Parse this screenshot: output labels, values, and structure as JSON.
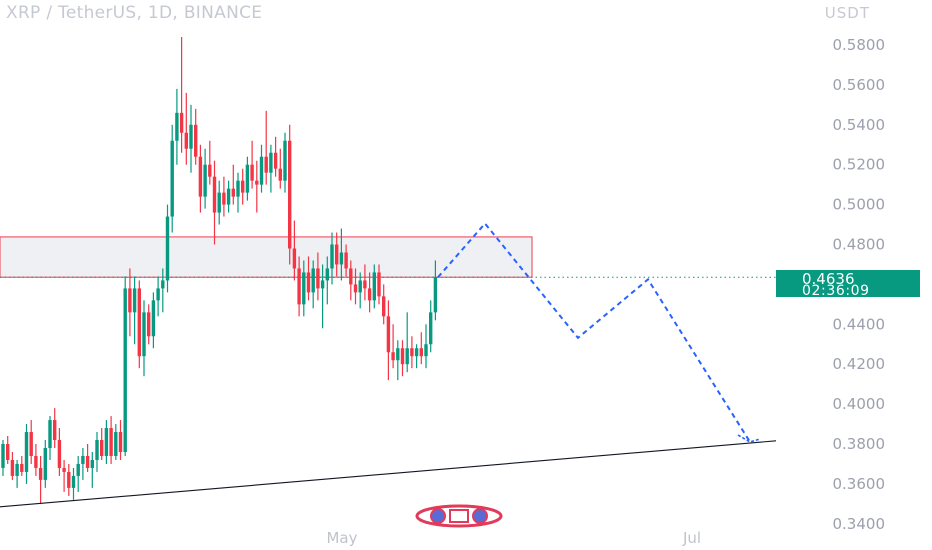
{
  "header": {
    "title": "XRP / TetherUS, 1D, BINANCE",
    "currency": "USDT"
  },
  "price_tag": {
    "price": "0.4636",
    "countdown": "02:36:09",
    "color": "#089981"
  },
  "colors": {
    "up": "#089981",
    "down": "#f23645",
    "projection": "#2962ff",
    "zone_border": "#f05a68",
    "trendline": "#131722"
  },
  "chart_data": {
    "type": "candlestick",
    "title": "XRP / TetherUS, 1D, BINANCE",
    "ylabel": "USDT",
    "ylim": [
      0.34,
      0.592
    ],
    "y_ticks": [
      "0.5800",
      "0.5600",
      "0.5400",
      "0.5200",
      "0.5000",
      "0.4800",
      "0.4400",
      "0.4200",
      "0.4000",
      "0.3800",
      "0.3600",
      "0.3400"
    ],
    "x_ticks": [
      "May",
      "Jul"
    ],
    "last_price": 0.4636,
    "candles": [
      [
        0.368,
        0.382,
        0.364,
        0.38
      ],
      [
        0.38,
        0.384,
        0.37,
        0.372
      ],
      [
        0.372,
        0.376,
        0.362,
        0.364
      ],
      [
        0.364,
        0.372,
        0.358,
        0.37
      ],
      [
        0.37,
        0.374,
        0.364,
        0.366
      ],
      [
        0.366,
        0.39,
        0.36,
        0.386
      ],
      [
        0.386,
        0.392,
        0.37,
        0.374
      ],
      [
        0.374,
        0.38,
        0.364,
        0.368
      ],
      [
        0.368,
        0.374,
        0.35,
        0.362
      ],
      [
        0.362,
        0.382,
        0.358,
        0.378
      ],
      [
        0.378,
        0.394,
        0.372,
        0.392
      ],
      [
        0.392,
        0.398,
        0.378,
        0.382
      ],
      [
        0.382,
        0.388,
        0.364,
        0.368
      ],
      [
        0.368,
        0.372,
        0.356,
        0.366
      ],
      [
        0.366,
        0.37,
        0.354,
        0.358
      ],
      [
        0.358,
        0.368,
        0.352,
        0.364
      ],
      [
        0.364,
        0.374,
        0.356,
        0.37
      ],
      [
        0.37,
        0.378,
        0.362,
        0.374
      ],
      [
        0.374,
        0.38,
        0.366,
        0.368
      ],
      [
        0.368,
        0.376,
        0.358,
        0.372
      ],
      [
        0.372,
        0.386,
        0.366,
        0.382
      ],
      [
        0.382,
        0.388,
        0.372,
        0.374
      ],
      [
        0.374,
        0.392,
        0.37,
        0.388
      ],
      [
        0.388,
        0.394,
        0.37,
        0.374
      ],
      [
        0.374,
        0.39,
        0.372,
        0.386
      ],
      [
        0.386,
        0.392,
        0.372,
        0.376
      ],
      [
        0.376,
        0.464,
        0.374,
        0.458
      ],
      [
        0.458,
        0.468,
        0.434,
        0.446
      ],
      [
        0.446,
        0.464,
        0.43,
        0.458
      ],
      [
        0.458,
        0.462,
        0.418,
        0.424
      ],
      [
        0.424,
        0.452,
        0.414,
        0.446
      ],
      [
        0.446,
        0.45,
        0.43,
        0.434
      ],
      [
        0.434,
        0.456,
        0.428,
        0.452
      ],
      [
        0.452,
        0.464,
        0.444,
        0.458
      ],
      [
        0.458,
        0.468,
        0.446,
        0.462
      ],
      [
        0.462,
        0.5,
        0.456,
        0.494
      ],
      [
        0.494,
        0.54,
        0.486,
        0.532
      ],
      [
        0.532,
        0.558,
        0.52,
        0.546
      ],
      [
        0.546,
        0.584,
        0.526,
        0.536
      ],
      [
        0.536,
        0.556,
        0.52,
        0.528
      ],
      [
        0.528,
        0.55,
        0.516,
        0.54
      ],
      [
        0.54,
        0.548,
        0.52,
        0.524
      ],
      [
        0.524,
        0.53,
        0.496,
        0.504
      ],
      [
        0.504,
        0.528,
        0.498,
        0.52
      ],
      [
        0.52,
        0.532,
        0.51,
        0.514
      ],
      [
        0.514,
        0.522,
        0.48,
        0.496
      ],
      [
        0.496,
        0.512,
        0.49,
        0.506
      ],
      [
        0.506,
        0.514,
        0.494,
        0.5
      ],
      [
        0.5,
        0.512,
        0.496,
        0.508
      ],
      [
        0.508,
        0.52,
        0.5,
        0.504
      ],
      [
        0.504,
        0.516,
        0.496,
        0.512
      ],
      [
        0.512,
        0.518,
        0.5,
        0.506
      ],
      [
        0.506,
        0.524,
        0.502,
        0.52
      ],
      [
        0.52,
        0.532,
        0.508,
        0.512
      ],
      [
        0.512,
        0.522,
        0.496,
        0.51
      ],
      [
        0.51,
        0.53,
        0.506,
        0.524
      ],
      [
        0.524,
        0.547,
        0.51,
        0.516
      ],
      [
        0.516,
        0.53,
        0.506,
        0.526
      ],
      [
        0.526,
        0.534,
        0.514,
        0.518
      ],
      [
        0.518,
        0.528,
        0.508,
        0.512
      ],
      [
        0.512,
        0.536,
        0.506,
        0.532
      ],
      [
        0.532,
        0.54,
        0.47,
        0.478
      ],
      [
        0.478,
        0.492,
        0.462,
        0.468
      ],
      [
        0.468,
        0.474,
        0.444,
        0.45
      ],
      [
        0.45,
        0.472,
        0.444,
        0.466
      ],
      [
        0.466,
        0.474,
        0.452,
        0.456
      ],
      [
        0.456,
        0.472,
        0.448,
        0.468
      ],
      [
        0.468,
        0.476,
        0.452,
        0.458
      ],
      [
        0.458,
        0.47,
        0.438,
        0.462
      ],
      [
        0.462,
        0.474,
        0.45,
        0.468
      ],
      [
        0.468,
        0.486,
        0.46,
        0.48
      ],
      [
        0.48,
        0.486,
        0.464,
        0.47
      ],
      [
        0.47,
        0.488,
        0.462,
        0.476
      ],
      [
        0.476,
        0.48,
        0.464,
        0.468
      ],
      [
        0.468,
        0.472,
        0.452,
        0.46
      ],
      [
        0.46,
        0.468,
        0.45,
        0.456
      ],
      [
        0.456,
        0.466,
        0.448,
        0.462
      ],
      [
        0.462,
        0.47,
        0.452,
        0.458
      ],
      [
        0.458,
        0.466,
        0.446,
        0.452
      ],
      [
        0.452,
        0.47,
        0.448,
        0.466
      ],
      [
        0.466,
        0.47,
        0.45,
        0.454
      ],
      [
        0.454,
        0.46,
        0.44,
        0.444
      ],
      [
        0.444,
        0.452,
        0.412,
        0.426
      ],
      [
        0.426,
        0.44,
        0.418,
        0.422
      ],
      [
        0.422,
        0.432,
        0.412,
        0.428
      ],
      [
        0.428,
        0.432,
        0.414,
        0.42
      ],
      [
        0.42,
        0.446,
        0.416,
        0.428
      ],
      [
        0.428,
        0.434,
        0.418,
        0.424
      ],
      [
        0.424,
        0.43,
        0.418,
        0.428
      ],
      [
        0.428,
        0.436,
        0.42,
        0.424
      ],
      [
        0.424,
        0.44,
        0.418,
        0.43
      ],
      [
        0.43,
        0.452,
        0.426,
        0.446
      ],
      [
        0.446,
        0.472,
        0.442,
        0.4636
      ]
    ],
    "resistance_zone": [
      0.4636,
      0.4838
    ],
    "projection_path": [
      0.4636,
      0.4905,
      0.4332,
      0.4625,
      0.381
    ],
    "trendline": [
      0.3485,
      0.3816
    ]
  },
  "watermark": {
    "name": "logo-watermark-icon"
  }
}
